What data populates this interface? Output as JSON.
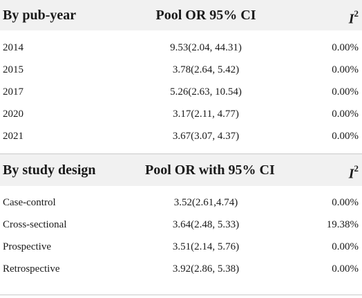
{
  "section1": {
    "headers": {
      "group": "By pub-year",
      "or": "Pool OR 95% CI",
      "i2_base": "I",
      "i2_sup": "2"
    },
    "rows": [
      {
        "label": "2014",
        "or": "9.53(2.04, 44.31)",
        "i2": "0.00%"
      },
      {
        "label": "2015",
        "or": "3.78(2.64, 5.42)",
        "i2": "0.00%"
      },
      {
        "label": "2017",
        "or": "5.26(2.63, 10.54)",
        "i2": "0.00%"
      },
      {
        "label": "2020",
        "or": "3.17(2.11, 4.77)",
        "i2": "0.00%"
      },
      {
        "label": "2021",
        "or": "3.67(3.07, 4.37)",
        "i2": "0.00%"
      }
    ]
  },
  "section2": {
    "headers": {
      "group": "By study design",
      "or": "Pool OR with 95% CI",
      "i2_base": "I",
      "i2_sup": "2"
    },
    "rows": [
      {
        "label": "Case-control",
        "or": "3.52(2.61,4.74)",
        "i2": "0.00%"
      },
      {
        "label": "Cross-sectional",
        "or": "3.64(2.48, 5.33)",
        "i2": "19.38%"
      },
      {
        "label": "Prospective",
        "or": "3.51(2.14, 5.76)",
        "i2": "0.00%"
      },
      {
        "label": "Retrospective",
        "or": "3.92(2.86, 5.38)",
        "i2": "0.00%"
      }
    ]
  }
}
